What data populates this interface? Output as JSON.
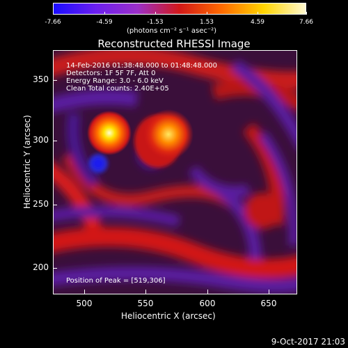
{
  "colorbar": {
    "ticks": [
      "-7.66",
      "-4.59",
      "-1.53",
      "1.53",
      "4.59",
      "7.66"
    ],
    "unit_label": "(photons cm⁻² s⁻¹ asec⁻²)",
    "colors": [
      "#1a0cff",
      "#6b1ff0",
      "#9b2fc8",
      "#d21818",
      "#ff6a00",
      "#ffd400",
      "#fff9d0"
    ]
  },
  "title": "Reconstructed RHESSI Image",
  "info_lines": [
    "14-Feb-2016 01:38:48.000 to 01:48:48.000",
    "Detectors: 1F 5F 7F, Att 0",
    "Energy Range: 3.0 - 6.0 keV",
    "Clean     Total counts: 2.40E+05"
  ],
  "peak_text": "Position of Peak = [519,306]",
  "axes": {
    "x_label": "Heliocentric X (arcsec)",
    "y_label": "Heliocentric Y (arcsec)",
    "x_ticks": [
      "500",
      "550",
      "600",
      "650"
    ],
    "y_ticks": [
      "350",
      "300",
      "250",
      "200"
    ]
  },
  "date_stamp": "9-Oct-2017 21:03"
}
